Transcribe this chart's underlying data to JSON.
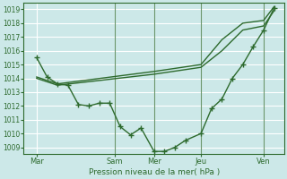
{
  "xlabel": "Pression niveau de la mer( hPa )",
  "bg_color": "#cce8e8",
  "grid_color": "#ffffff",
  "line_color": "#2d6a2d",
  "ylim": [
    1008.5,
    1019.5
  ],
  "yticks": [
    1009,
    1010,
    1011,
    1012,
    1013,
    1014,
    1015,
    1016,
    1017,
    1018,
    1019
  ],
  "xlim": [
    0,
    100
  ],
  "xtick_labels": [
    "Mar",
    "Sam",
    "Mer",
    "Jeu",
    "Ven"
  ],
  "xtick_positions": [
    5,
    35,
    50,
    68,
    92
  ],
  "vlines_x": [
    35,
    50,
    68,
    92
  ],
  "detailed_x": [
    5,
    9,
    13,
    17,
    21,
    25,
    29,
    33,
    37,
    41,
    45,
    50,
    54,
    58,
    62,
    68,
    72,
    76,
    80,
    84,
    88,
    92,
    96
  ],
  "detailed_y": [
    1015.5,
    1014.1,
    1013.6,
    1013.5,
    1012.1,
    1012.0,
    1012.2,
    1012.2,
    1010.5,
    1009.9,
    1010.4,
    1008.7,
    1008.7,
    1009.0,
    1009.5,
    1010.0,
    1011.8,
    1012.5,
    1014.0,
    1015.0,
    1016.3,
    1017.5,
    1019.1
  ],
  "upper_x": [
    5,
    13,
    50,
    68,
    76,
    84,
    92,
    96
  ],
  "upper_y": [
    1014.1,
    1013.6,
    1014.5,
    1015.0,
    1016.8,
    1018.0,
    1018.2,
    1019.2
  ],
  "lower_x": [
    5,
    13,
    50,
    68,
    76,
    84,
    92,
    96
  ],
  "lower_y": [
    1014.0,
    1013.5,
    1014.3,
    1014.8,
    1016.0,
    1017.5,
    1017.8,
    1018.9
  ]
}
